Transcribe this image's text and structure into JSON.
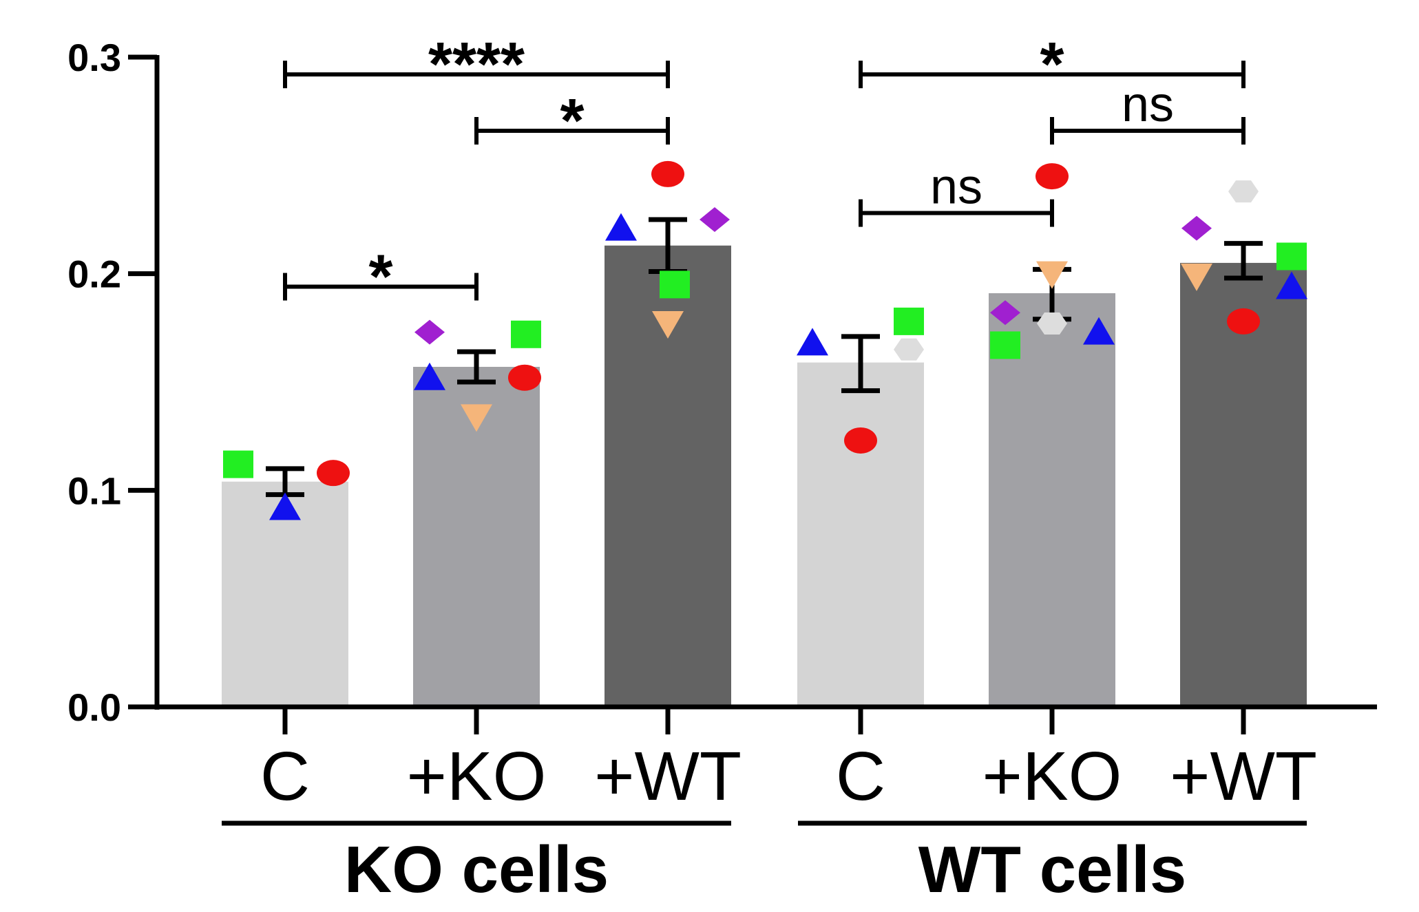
{
  "chart_data": {
    "type": "bar",
    "title": "",
    "xlabel": "",
    "ylabel": "",
    "ylim": [
      0,
      0.3
    ],
    "yticks": [
      "0.0",
      "0.1",
      "0.2",
      "0.3"
    ],
    "groups": [
      {
        "label": "KO cells",
        "categories": [
          "C",
          "+KO",
          "+WT"
        ]
      },
      {
        "label": "WT cells",
        "categories": [
          "C",
          "+KO",
          "+WT"
        ]
      }
    ],
    "bars": [
      {
        "group": "KO cells",
        "category": "C",
        "mean": 0.104,
        "sem_low": 0.098,
        "sem_high": 0.11,
        "color": "#d4d4d4",
        "points": [
          {
            "marker": "square",
            "color": "#22ee22",
            "value": 0.112
          },
          {
            "marker": "circle",
            "color": "#ee1111",
            "value": 0.108
          },
          {
            "marker": "triangle-up",
            "color": "#1111ee",
            "value": 0.092
          }
        ]
      },
      {
        "group": "KO cells",
        "category": "+KO",
        "mean": 0.157,
        "sem_low": 0.15,
        "sem_high": 0.164,
        "color": "#a1a1a5",
        "points": [
          {
            "marker": "diamond",
            "color": "#a020d0",
            "value": 0.173
          },
          {
            "marker": "square",
            "color": "#22ee22",
            "value": 0.172
          },
          {
            "marker": "circle",
            "color": "#ee1111",
            "value": 0.152
          },
          {
            "marker": "triangle-up",
            "color": "#1111ee",
            "value": 0.152
          },
          {
            "marker": "triangle-down",
            "color": "#f5b57a",
            "value": 0.134
          }
        ]
      },
      {
        "group": "KO cells",
        "category": "+WT",
        "mean": 0.213,
        "sem_low": 0.201,
        "sem_high": 0.225,
        "color": "#636363",
        "points": [
          {
            "marker": "circle",
            "color": "#ee1111",
            "value": 0.246
          },
          {
            "marker": "diamond",
            "color": "#a020d0",
            "value": 0.225
          },
          {
            "marker": "triangle-up",
            "color": "#1111ee",
            "value": 0.221
          },
          {
            "marker": "square",
            "color": "#22ee22",
            "value": 0.195
          },
          {
            "marker": "triangle-down",
            "color": "#f5b57a",
            "value": 0.177
          }
        ]
      },
      {
        "group": "WT cells",
        "category": "C",
        "mean": 0.159,
        "sem_low": 0.146,
        "sem_high": 0.171,
        "color": "#d4d4d4",
        "points": [
          {
            "marker": "square",
            "color": "#22ee22",
            "value": 0.178
          },
          {
            "marker": "triangle-up",
            "color": "#1111ee",
            "value": 0.168
          },
          {
            "marker": "hexagon",
            "color": "#dddddd",
            "value": 0.165
          },
          {
            "marker": "circle",
            "color": "#ee1111",
            "value": 0.123
          }
        ]
      },
      {
        "group": "WT cells",
        "category": "+KO",
        "mean": 0.191,
        "sem_low": 0.179,
        "sem_high": 0.202,
        "color": "#a1a1a5",
        "points": [
          {
            "marker": "circle",
            "color": "#ee1111",
            "value": 0.245
          },
          {
            "marker": "triangle-down",
            "color": "#f5b57a",
            "value": 0.2
          },
          {
            "marker": "diamond",
            "color": "#a020d0",
            "value": 0.182
          },
          {
            "marker": "hexagon",
            "color": "#dddddd",
            "value": 0.177
          },
          {
            "marker": "triangle-up",
            "color": "#1111ee",
            "value": 0.173
          },
          {
            "marker": "square",
            "color": "#22ee22",
            "value": 0.167
          }
        ]
      },
      {
        "group": "WT cells",
        "category": "+WT",
        "mean": 0.205,
        "sem_low": 0.198,
        "sem_high": 0.214,
        "color": "#636363",
        "points": [
          {
            "marker": "hexagon",
            "color": "#dddddd",
            "value": 0.238
          },
          {
            "marker": "diamond",
            "color": "#a020d0",
            "value": 0.221
          },
          {
            "marker": "square",
            "color": "#22ee22",
            "value": 0.208
          },
          {
            "marker": "triangle-down",
            "color": "#f5b57a",
            "value": 0.199
          },
          {
            "marker": "triangle-up",
            "color": "#1111ee",
            "value": 0.194
          },
          {
            "marker": "circle",
            "color": "#ee1111",
            "value": 0.178
          }
        ]
      }
    ],
    "comparisons": [
      {
        "from": 0,
        "to": 2,
        "value": 0.292,
        "label": "****"
      },
      {
        "from": 1,
        "to": 2,
        "value": 0.266,
        "label": "*"
      },
      {
        "from": 0,
        "to": 1,
        "value": 0.194,
        "label": "*"
      },
      {
        "from": 3,
        "to": 5,
        "value": 0.292,
        "label": "*"
      },
      {
        "from": 4,
        "to": 5,
        "value": 0.266,
        "label": "ns"
      },
      {
        "from": 3,
        "to": 4,
        "value": 0.228,
        "label": "ns"
      }
    ]
  }
}
